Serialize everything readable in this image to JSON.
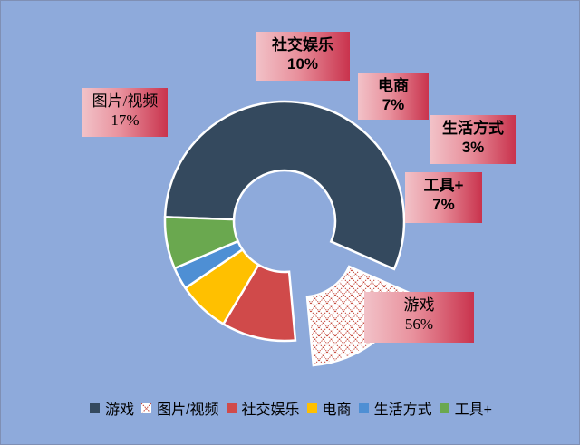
{
  "chart_data": {
    "type": "pie",
    "variant": "donut",
    "exploded_category": "图片/视频",
    "categories": [
      "游戏",
      "图片/视频",
      "社交娱乐",
      "电商",
      "生活方式",
      "工具+"
    ],
    "values": [
      56,
      17,
      10,
      7,
      3,
      7
    ],
    "data_labels": [
      "56%",
      "17%",
      "10%",
      "7%",
      "3%",
      "7%"
    ],
    "colors": [
      "#34495e",
      "pattern-red-lattice",
      "#d04a4a",
      "#ffc000",
      "#4e8fd4",
      "#6aa84f"
    ],
    "legend_position": "bottom",
    "background_color": "#8eaadb",
    "callout_gradient": [
      "#f2c2c8",
      "#c9334d"
    ]
  }
}
